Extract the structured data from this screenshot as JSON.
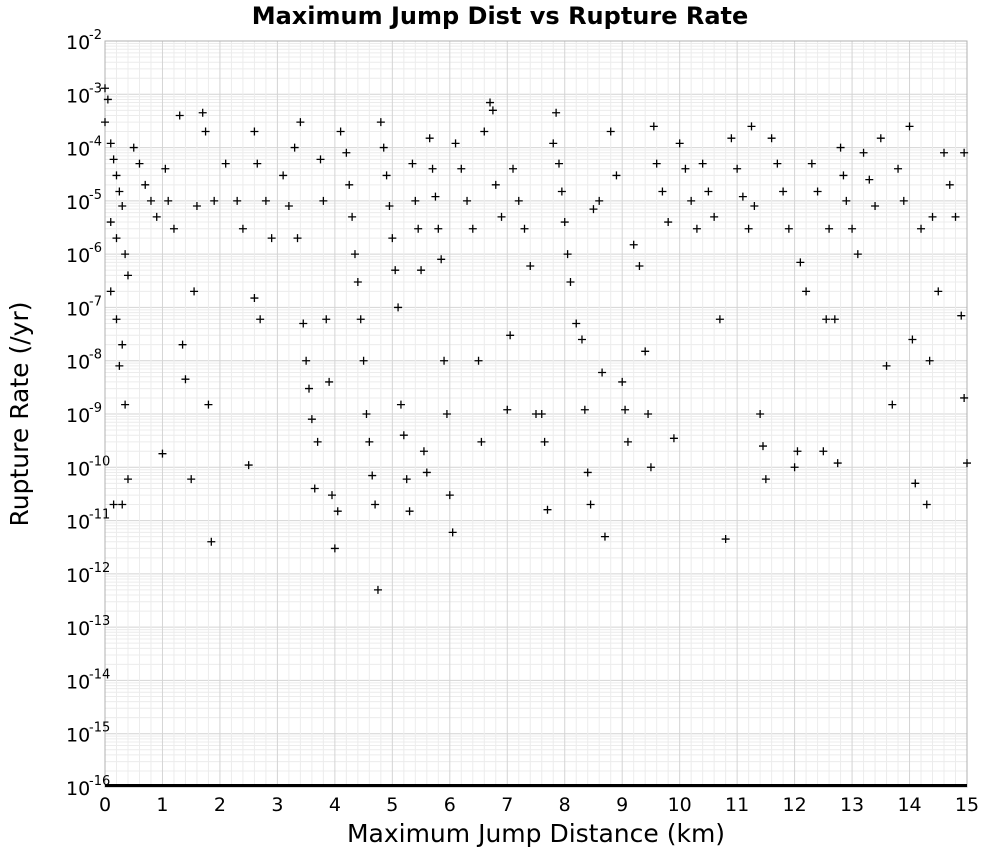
{
  "chart_data": {
    "type": "scatter",
    "title": "Maximum Jump Dist vs Rupture Rate",
    "xlabel": "Maximum Jump Distance (km)",
    "ylabel": "Rupture Rate (/yr)",
    "xlim": [
      0,
      15
    ],
    "ylim": [
      1e-16,
      0.01
    ],
    "yscale": "log",
    "grid": true,
    "marker": "plus",
    "marker_color": "#000000",
    "x_ticks": [
      "0",
      "1",
      "2",
      "3",
      "4",
      "5",
      "6",
      "7",
      "8",
      "9",
      "10",
      "11",
      "12",
      "13",
      "14",
      "15"
    ],
    "y_ticks": [
      {
        "base": "10",
        "exp": "-2"
      },
      {
        "base": "10",
        "exp": "-3"
      },
      {
        "base": "10",
        "exp": "-4"
      },
      {
        "base": "10",
        "exp": "-5"
      },
      {
        "base": "10",
        "exp": "-6"
      },
      {
        "base": "10",
        "exp": "-7"
      },
      {
        "base": "10",
        "exp": "-8"
      },
      {
        "base": "10",
        "exp": "-9"
      },
      {
        "base": "10",
        "exp": "-10"
      },
      {
        "base": "10",
        "exp": "-11"
      },
      {
        "base": "10",
        "exp": "-12"
      },
      {
        "base": "10",
        "exp": "-13"
      },
      {
        "base": "10",
        "exp": "-14"
      },
      {
        "base": "10",
        "exp": "-15"
      },
      {
        "base": "10",
        "exp": "-16"
      }
    ],
    "series": [
      {
        "points": [
          [
            0.0,
            0.0013
          ],
          [
            0.05,
            0.0008
          ],
          [
            0.0,
            0.0003
          ],
          [
            0.1,
            0.00012
          ],
          [
            0.15,
            6e-05
          ],
          [
            0.2,
            3e-05
          ],
          [
            0.25,
            1.5e-05
          ],
          [
            0.3,
            8e-06
          ],
          [
            0.1,
            4e-06
          ],
          [
            0.2,
            2e-06
          ],
          [
            0.35,
            1e-06
          ],
          [
            0.4,
            4e-07
          ],
          [
            0.1,
            2e-07
          ],
          [
            0.2,
            6e-08
          ],
          [
            0.3,
            2e-08
          ],
          [
            0.25,
            8e-09
          ],
          [
            0.35,
            1.5e-09
          ],
          [
            0.4,
            6e-11
          ],
          [
            0.15,
            2e-11
          ],
          [
            0.3,
            2e-11
          ],
          [
            0.5,
            0.0001
          ],
          [
            0.6,
            5e-05
          ],
          [
            0.7,
            2e-05
          ],
          [
            0.8,
            1e-05
          ],
          [
            0.9,
            5e-06
          ],
          [
            1.0,
            1.8e-10
          ],
          [
            1.05,
            4e-05
          ],
          [
            1.1,
            1e-05
          ],
          [
            1.2,
            3e-06
          ],
          [
            1.3,
            0.0004
          ],
          [
            1.35,
            2e-08
          ],
          [
            1.4,
            4.5e-09
          ],
          [
            1.5,
            6e-11
          ],
          [
            1.55,
            2e-07
          ],
          [
            1.6,
            8e-06
          ],
          [
            1.7,
            0.00045
          ],
          [
            1.75,
            0.0002
          ],
          [
            1.8,
            1.5e-09
          ],
          [
            1.85,
            4e-12
          ],
          [
            1.9,
            1e-05
          ],
          [
            2.1,
            5e-05
          ],
          [
            2.3,
            1e-05
          ],
          [
            2.4,
            3e-06
          ],
          [
            2.5,
            1.1e-10
          ],
          [
            2.6,
            0.0002
          ],
          [
            2.65,
            5e-05
          ],
          [
            2.6,
            1.5e-07
          ],
          [
            2.7,
            6e-08
          ],
          [
            2.8,
            1e-05
          ],
          [
            2.9,
            2e-06
          ],
          [
            3.1,
            3e-05
          ],
          [
            3.2,
            8e-06
          ],
          [
            3.3,
            0.0001
          ],
          [
            3.35,
            2e-06
          ],
          [
            3.4,
            0.0003
          ],
          [
            3.45,
            5e-08
          ],
          [
            3.5,
            1e-08
          ],
          [
            3.55,
            3e-09
          ],
          [
            3.6,
            8e-10
          ],
          [
            3.65,
            4e-11
          ],
          [
            3.7,
            3e-10
          ],
          [
            3.75,
            6e-05
          ],
          [
            3.8,
            1e-05
          ],
          [
            3.85,
            6e-08
          ],
          [
            3.9,
            4e-09
          ],
          [
            3.95,
            3e-11
          ],
          [
            4.0,
            3e-12
          ],
          [
            4.05,
            1.5e-11
          ],
          [
            4.1,
            0.0002
          ],
          [
            4.2,
            8e-05
          ],
          [
            4.25,
            2e-05
          ],
          [
            4.3,
            5e-06
          ],
          [
            4.35,
            1e-06
          ],
          [
            4.4,
            3e-07
          ],
          [
            4.45,
            6e-08
          ],
          [
            4.5,
            1e-08
          ],
          [
            4.55,
            1e-09
          ],
          [
            4.6,
            3e-10
          ],
          [
            4.65,
            7e-11
          ],
          [
            4.7,
            2e-11
          ],
          [
            4.75,
            5e-13
          ],
          [
            4.8,
            0.0003
          ],
          [
            4.85,
            0.0001
          ],
          [
            4.9,
            3e-05
          ],
          [
            4.95,
            8e-06
          ],
          [
            5.0,
            2e-06
          ],
          [
            5.05,
            5e-07
          ],
          [
            5.1,
            1e-07
          ],
          [
            5.15,
            1.5e-09
          ],
          [
            5.2,
            4e-10
          ],
          [
            5.25,
            6e-11
          ],
          [
            5.3,
            1.5e-11
          ],
          [
            5.35,
            5e-05
          ],
          [
            5.4,
            1e-05
          ],
          [
            5.45,
            3e-06
          ],
          [
            5.5,
            5e-07
          ],
          [
            5.55,
            2e-10
          ],
          [
            5.6,
            8e-11
          ],
          [
            5.65,
            0.00015
          ],
          [
            5.7,
            4e-05
          ],
          [
            5.75,
            1.2e-05
          ],
          [
            5.8,
            3e-06
          ],
          [
            5.85,
            8e-07
          ],
          [
            5.9,
            1e-08
          ],
          [
            5.95,
            1e-09
          ],
          [
            6.0,
            3e-11
          ],
          [
            6.05,
            6e-12
          ],
          [
            6.1,
            0.00012
          ],
          [
            6.2,
            4e-05
          ],
          [
            6.3,
            1e-05
          ],
          [
            6.4,
            3e-06
          ],
          [
            6.5,
            1e-08
          ],
          [
            6.55,
            3e-10
          ],
          [
            6.6,
            0.0002
          ],
          [
            6.7,
            0.0007
          ],
          [
            6.75,
            0.0005
          ],
          [
            6.8,
            2e-05
          ],
          [
            6.9,
            5e-06
          ],
          [
            7.0,
            1.2e-09
          ],
          [
            7.05,
            3e-08
          ],
          [
            7.1,
            4e-05
          ],
          [
            7.2,
            1e-05
          ],
          [
            7.3,
            3e-06
          ],
          [
            7.4,
            6e-07
          ],
          [
            7.5,
            1e-09
          ],
          [
            7.6,
            1e-09
          ],
          [
            7.65,
            3e-10
          ],
          [
            7.7,
            1.6e-11
          ],
          [
            7.8,
            0.00012
          ],
          [
            7.85,
            0.00045
          ],
          [
            7.9,
            5e-05
          ],
          [
            7.95,
            1.5e-05
          ],
          [
            8.0,
            4e-06
          ],
          [
            8.05,
            1e-06
          ],
          [
            8.1,
            3e-07
          ],
          [
            8.2,
            5e-08
          ],
          [
            8.3,
            2.5e-08
          ],
          [
            8.35,
            1.2e-09
          ],
          [
            8.4,
            8e-11
          ],
          [
            8.45,
            2e-11
          ],
          [
            8.5,
            7e-06
          ],
          [
            8.6,
            1e-05
          ],
          [
            8.65,
            6e-09
          ],
          [
            8.7,
            5e-12
          ],
          [
            8.8,
            0.0002
          ],
          [
            8.9,
            3e-05
          ],
          [
            9.0,
            4e-09
          ],
          [
            9.05,
            1.2e-09
          ],
          [
            9.1,
            3e-10
          ],
          [
            9.2,
            1.5e-06
          ],
          [
            9.3,
            6e-07
          ],
          [
            9.4,
            1.5e-08
          ],
          [
            9.45,
            1e-09
          ],
          [
            9.5,
            1e-10
          ],
          [
            9.55,
            0.00025
          ],
          [
            9.6,
            5e-05
          ],
          [
            9.7,
            1.5e-05
          ],
          [
            9.8,
            4e-06
          ],
          [
            9.9,
            3.5e-10
          ],
          [
            10.0,
            0.00012
          ],
          [
            10.1,
            4e-05
          ],
          [
            10.2,
            1e-05
          ],
          [
            10.3,
            3e-06
          ],
          [
            10.4,
            5e-05
          ],
          [
            10.5,
            1.5e-05
          ],
          [
            10.6,
            5e-06
          ],
          [
            10.7,
            6e-08
          ],
          [
            10.8,
            4.5e-12
          ],
          [
            10.9,
            0.00015
          ],
          [
            11.0,
            4e-05
          ],
          [
            11.1,
            1.2e-05
          ],
          [
            11.2,
            3e-06
          ],
          [
            11.25,
            0.00025
          ],
          [
            11.3,
            8e-06
          ],
          [
            11.4,
            1e-09
          ],
          [
            11.45,
            2.5e-10
          ],
          [
            11.5,
            6e-11
          ],
          [
            11.6,
            0.00015
          ],
          [
            11.7,
            5e-05
          ],
          [
            11.8,
            1.5e-05
          ],
          [
            11.9,
            3e-06
          ],
          [
            12.0,
            1e-10
          ],
          [
            12.05,
            2e-10
          ],
          [
            12.1,
            7e-07
          ],
          [
            12.2,
            2e-07
          ],
          [
            12.3,
            5e-05
          ],
          [
            12.4,
            1.5e-05
          ],
          [
            12.5,
            2e-10
          ],
          [
            12.55,
            6e-08
          ],
          [
            12.6,
            3e-06
          ],
          [
            12.7,
            6e-08
          ],
          [
            12.75,
            1.2e-10
          ],
          [
            12.8,
            0.0001
          ],
          [
            12.85,
            3e-05
          ],
          [
            12.9,
            1e-05
          ],
          [
            13.0,
            3e-06
          ],
          [
            13.1,
            1e-06
          ],
          [
            13.2,
            8e-05
          ],
          [
            13.3,
            2.5e-05
          ],
          [
            13.4,
            8e-06
          ],
          [
            13.5,
            0.00015
          ],
          [
            13.6,
            8e-09
          ],
          [
            13.7,
            1.5e-09
          ],
          [
            13.8,
            4e-05
          ],
          [
            13.9,
            1e-05
          ],
          [
            14.0,
            0.00025
          ],
          [
            14.05,
            2.5e-08
          ],
          [
            14.1,
            5e-11
          ],
          [
            14.2,
            3e-06
          ],
          [
            14.3,
            2e-11
          ],
          [
            14.35,
            1e-08
          ],
          [
            14.4,
            5e-06
          ],
          [
            14.5,
            2e-07
          ],
          [
            14.6,
            8e-05
          ],
          [
            14.7,
            2e-05
          ],
          [
            14.8,
            5e-06
          ],
          [
            14.9,
            7e-08
          ],
          [
            14.95,
            2e-09
          ],
          [
            15.0,
            1.2e-10
          ],
          [
            14.95,
            8e-05
          ]
        ]
      }
    ]
  }
}
